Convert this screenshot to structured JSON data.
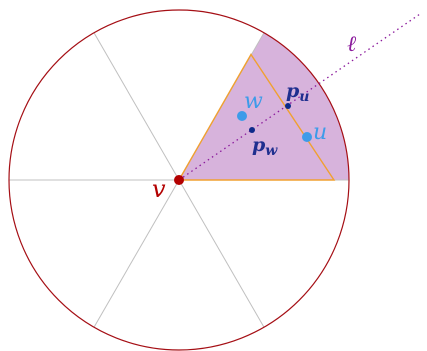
{
  "labels": {
    "v": "v",
    "w": "w",
    "u": "u",
    "pu_base": "p",
    "pu_sub": "u",
    "pw_base": "p",
    "pw_sub": "w",
    "ell": "ℓ"
  },
  "colors": {
    "circle": "#a50f15",
    "spokes": "#c0c0c0",
    "sector_fill": "#d7b3dc",
    "triangle": "#f0a030",
    "line_l": "#8b1a9c",
    "point_v": "#b30000",
    "points_light": "#3d9be9",
    "points_dark": "#0d2a8a",
    "text_dark": "#1f2f8f",
    "text_red": "#b30000",
    "text_purple": "#8b1a9c",
    "text_light": "#3d9be9"
  }
}
